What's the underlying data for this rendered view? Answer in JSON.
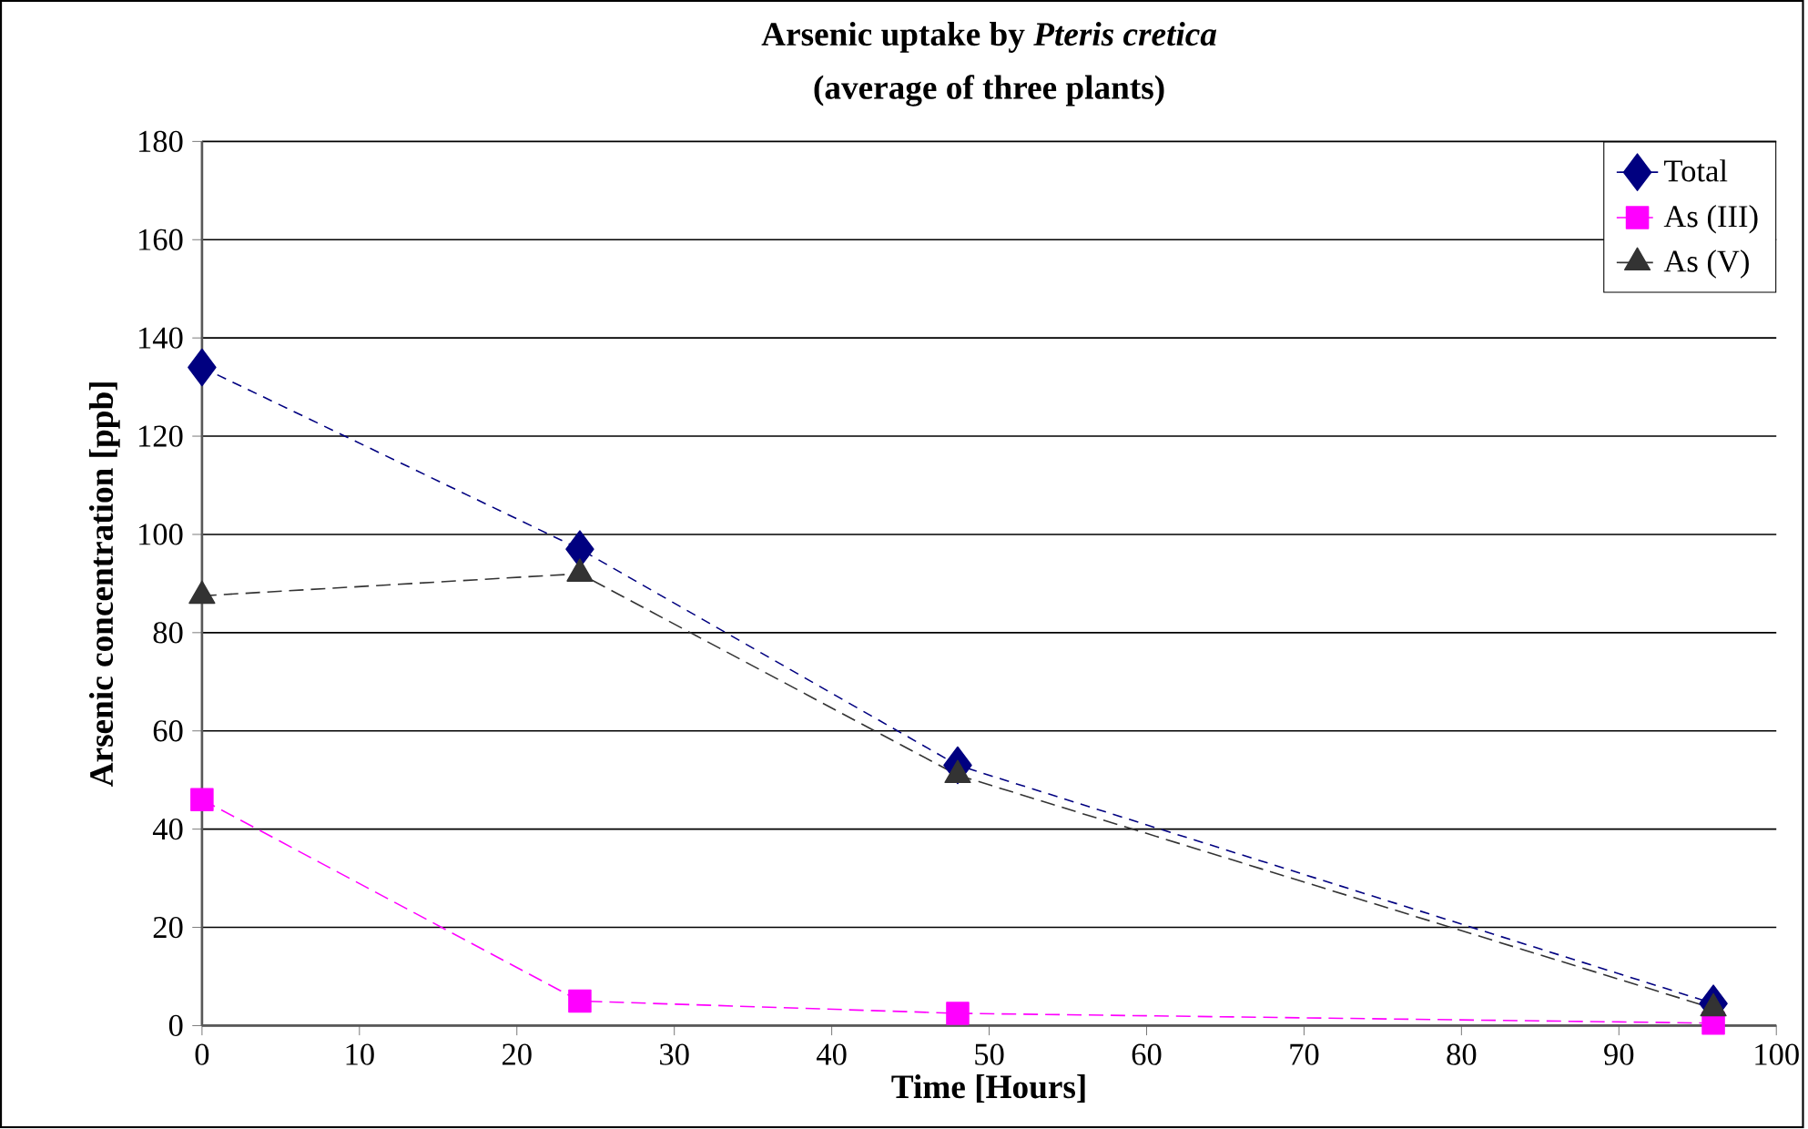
{
  "chart_data": {
    "type": "line",
    "title": "Arsenic uptake by *Pteris cretica*",
    "subtitle": "(average of three plants)",
    "xlabel": "Time [Hours]",
    "ylabel": "Arsenic concentration [ppb]",
    "x": [
      0,
      24,
      48,
      96
    ],
    "series": [
      {
        "name": "Total",
        "color": "#000080",
        "values": [
          134,
          97,
          53,
          4.5
        ],
        "marker": "diamond",
        "line_style": "dashed"
      },
      {
        "name": "As (III)",
        "color": "#ff00ff",
        "values": [
          46,
          5,
          2.5,
          0.5
        ],
        "marker": "square",
        "line_style": "dashed"
      },
      {
        "name": "As (V)",
        "color": "#333333",
        "values": [
          87.5,
          92,
          51,
          3.5
        ],
        "marker": "triangle",
        "line_style": "dashed"
      }
    ],
    "xlim": [
      0,
      100
    ],
    "xticks": [
      0,
      10,
      20,
      30,
      40,
      50,
      60,
      70,
      80,
      90,
      100
    ],
    "ylim": [
      0,
      180
    ],
    "yticks": [
      0,
      20,
      40,
      60,
      80,
      100,
      120,
      140,
      160,
      180
    ],
    "grid": "y",
    "legend": "top right"
  }
}
